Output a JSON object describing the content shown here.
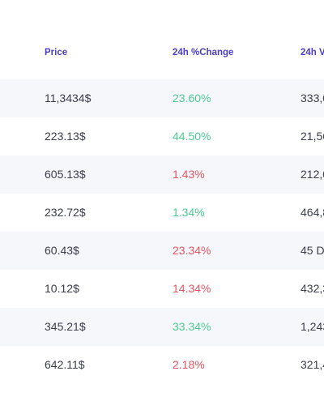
{
  "header": {
    "price": "Price",
    "change": "24h %Change",
    "volume": "24h V"
  },
  "colors": {
    "header_text": "#4b3fc7",
    "positive": "#4ecb93",
    "negative": "#e5565f",
    "row_shade": "#f6f7fb"
  },
  "rows": [
    {
      "price": "11,3434$",
      "change": "23.60%",
      "trend": "pos",
      "volume": "333,0"
    },
    {
      "price": "223.13$",
      "change": "44.50%",
      "trend": "pos",
      "volume": "21,56"
    },
    {
      "price": "605.13$",
      "change": "1.43%",
      "trend": "neg",
      "volume": "212,0"
    },
    {
      "price": "232.72$",
      "change": "1.34%",
      "trend": "pos",
      "volume": "464,8"
    },
    {
      "price": "60.43$",
      "change": "23.34%",
      "trend": "neg",
      "volume": "45 D"
    },
    {
      "price": "10.12$",
      "change": "14.34%",
      "trend": "neg",
      "volume": "432,3"
    },
    {
      "price": "345.21$",
      "change": "33.34%",
      "trend": "pos",
      "volume": "1,243"
    },
    {
      "price": "642.11$",
      "change": "2.18%",
      "trend": "neg",
      "volume": "321,4"
    }
  ]
}
